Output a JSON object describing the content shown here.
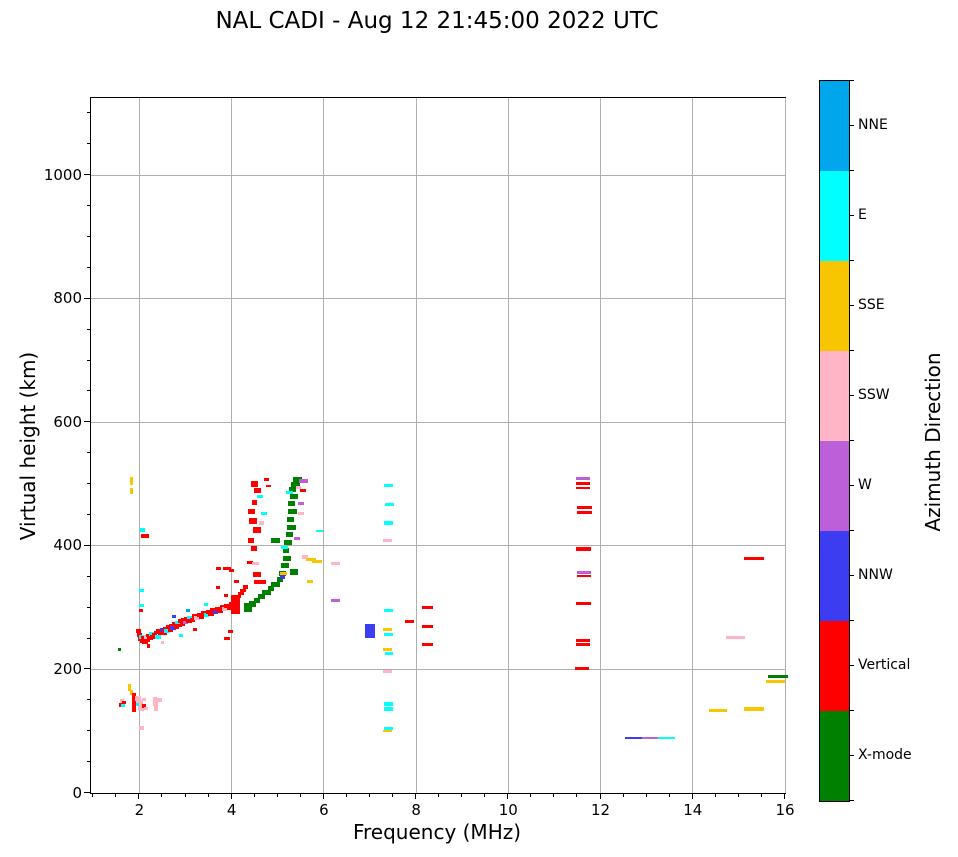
{
  "title": "NAL CADI - Aug 12 21:45:00 2022 UTC",
  "chart_data": {
    "type": "scatter",
    "title": "NAL CADI - Aug 12 21:45:00 2022 UTC",
    "xlabel": "Frequency (MHz)",
    "ylabel": "Virtual height (km)",
    "colorbar_label": "Azimuth Direction",
    "xlim": [
      0.95,
      16.0
    ],
    "ylim": [
      0,
      1125
    ],
    "xticks": [
      2,
      4,
      6,
      8,
      10,
      12,
      14,
      16
    ],
    "yticks": [
      0,
      200,
      400,
      600,
      800,
      1000
    ],
    "x_minor_step": 0.5,
    "y_minor_step": 50,
    "grid": true,
    "legend_position": "right-colorbar",
    "directions": [
      {
        "label": "NNE",
        "color": "#00a6ec"
      },
      {
        "label": "E",
        "color": "#00ffff"
      },
      {
        "label": "SSE",
        "color": "#f7c600"
      },
      {
        "label": "SSW",
        "color": "#ffb5c5"
      },
      {
        "label": "W",
        "color": "#bc5fd8"
      },
      {
        "label": "NNW",
        "color": "#3c3cf0"
      },
      {
        "label": "Vertical",
        "color": "#fe0000"
      },
      {
        "label": "X-mode",
        "color": "#008000"
      }
    ],
    "points_format": "[freq_MHz, height_km, direction_index, width_MHz(optional), height_km_size(optional)]",
    "points": [
      [
        1.57,
        232,
        7,
        0.08,
        5
      ],
      [
        1.62,
        148,
        3,
        0.1,
        7
      ],
      [
        1.6,
        143,
        6,
        0.09,
        6
      ],
      [
        1.64,
        141,
        1,
        0.09,
        5
      ],
      [
        1.67,
        146,
        6,
        0.08,
        5
      ],
      [
        1.78,
        171,
        2,
        0.07,
        11
      ],
      [
        1.83,
        163,
        2,
        0.07,
        9
      ],
      [
        1.88,
        158,
        6,
        0.09,
        7
      ],
      [
        1.89,
        150,
        6,
        0.09,
        8
      ],
      [
        1.88,
        142,
        6,
        0.09,
        8
      ],
      [
        1.88,
        134,
        6,
        0.09,
        7
      ],
      [
        1.97,
        153,
        3,
        0.12,
        7
      ],
      [
        2.0,
        146,
        3,
        0.14,
        9
      ],
      [
        2.03,
        137,
        3,
        0.12,
        8
      ],
      [
        1.96,
        143,
        1,
        0.08,
        5
      ],
      [
        2.1,
        141,
        6,
        0.08,
        6
      ],
      [
        2.14,
        137,
        3,
        0.1,
        6
      ],
      [
        2.1,
        152,
        3,
        0.08,
        5
      ],
      [
        2.33,
        153,
        3,
        0.09,
        6
      ],
      [
        2.35,
        146,
        3,
        0.12,
        9
      ],
      [
        2.36,
        137,
        3,
        0.1,
        7
      ],
      [
        2.44,
        150,
        3,
        0.1,
        6
      ],
      [
        2.05,
        105,
        3,
        0.1,
        7
      ],
      [
        1.82,
        505,
        2,
        0.07,
        12
      ],
      [
        1.83,
        489,
        2,
        0.07,
        9
      ],
      [
        2.07,
        426,
        1,
        0.1,
        6
      ],
      [
        2.12,
        416,
        6,
        0.16,
        8
      ],
      [
        2.05,
        328,
        1,
        0.1,
        5
      ],
      [
        2.05,
        304,
        1,
        0.1,
        5
      ],
      [
        2.04,
        296,
        6,
        0.09,
        5
      ],
      [
        1.98,
        262,
        6
      ],
      [
        2.0,
        256,
        6
      ],
      [
        2.02,
        249,
        6
      ],
      [
        2.05,
        253,
        1
      ],
      [
        2.07,
        246,
        6
      ],
      [
        2.1,
        251,
        6
      ],
      [
        2.12,
        244,
        6
      ],
      [
        2.15,
        252,
        3
      ],
      [
        2.17,
        247,
        6
      ],
      [
        2.2,
        255,
        6
      ],
      [
        2.23,
        250,
        6
      ],
      [
        2.27,
        257,
        1
      ],
      [
        2.3,
        252,
        6
      ],
      [
        2.33,
        256,
        6
      ],
      [
        2.37,
        260,
        6
      ],
      [
        2.4,
        253,
        1
      ],
      [
        2.43,
        262,
        6
      ],
      [
        2.47,
        258,
        6
      ],
      [
        2.5,
        264,
        5
      ],
      [
        2.53,
        259,
        6
      ],
      [
        2.57,
        266,
        6
      ],
      [
        2.6,
        262,
        1
      ],
      [
        2.63,
        269,
        6
      ],
      [
        2.67,
        264,
        6
      ],
      [
        2.7,
        271,
        6
      ],
      [
        2.73,
        267,
        5
      ],
      [
        2.77,
        273,
        6
      ],
      [
        2.8,
        269,
        6
      ],
      [
        2.83,
        276,
        1
      ],
      [
        2.87,
        271,
        6
      ],
      [
        2.9,
        278,
        6
      ],
      [
        2.93,
        274,
        6
      ],
      [
        2.97,
        280,
        6
      ],
      [
        3.0,
        276,
        4
      ],
      [
        3.03,
        282,
        6
      ],
      [
        3.07,
        278,
        6
      ],
      [
        3.1,
        284,
        1
      ],
      [
        3.15,
        280,
        6
      ],
      [
        3.2,
        286,
        6
      ],
      [
        3.25,
        283,
        3
      ],
      [
        3.3,
        288,
        6
      ],
      [
        3.35,
        285,
        6
      ],
      [
        3.4,
        291,
        6
      ],
      [
        3.45,
        288,
        1
      ],
      [
        3.5,
        293,
        6
      ],
      [
        3.55,
        290,
        6
      ],
      [
        3.6,
        296,
        6
      ],
      [
        3.65,
        293,
        5
      ],
      [
        3.7,
        298,
        6
      ],
      [
        3.75,
        295,
        6
      ],
      [
        3.8,
        301,
        6
      ],
      [
        3.85,
        298,
        3
      ],
      [
        3.9,
        303,
        6
      ],
      [
        3.95,
        300,
        6
      ],
      [
        4.0,
        306,
        6
      ],
      [
        4.05,
        310,
        6
      ],
      [
        4.1,
        314,
        6
      ],
      [
        4.15,
        318,
        6
      ],
      [
        4.2,
        323,
        6
      ],
      [
        4.25,
        328,
        6
      ],
      [
        4.3,
        333,
        6
      ],
      [
        2.2,
        238,
        6,
        0.08,
        5
      ],
      [
        2.5,
        243,
        3,
        0.08,
        5
      ],
      [
        2.9,
        255,
        1,
        0.08,
        5
      ],
      [
        3.2,
        265,
        6,
        0.08,
        5
      ],
      [
        2.75,
        285,
        5,
        0.08,
        5
      ],
      [
        3.05,
        295,
        0,
        0.08,
        5
      ],
      [
        3.45,
        305,
        1,
        0.08,
        5
      ],
      [
        3.7,
        333,
        6,
        0.1,
        5
      ],
      [
        3.9,
        364,
        6,
        0.16,
        5
      ],
      [
        3.72,
        364,
        6,
        0.1,
        5
      ],
      [
        4.1,
        343,
        6,
        0.1,
        5
      ],
      [
        3.88,
        319,
        6,
        0.1,
        5
      ],
      [
        4.0,
        360,
        6,
        0.1,
        4
      ],
      [
        3.9,
        250,
        6,
        0.12,
        5
      ],
      [
        3.97,
        261,
        6,
        0.1,
        5
      ],
      [
        4.08,
        305,
        6,
        0.2,
        30
      ],
      [
        4.5,
        500,
        6,
        0.16,
        9
      ],
      [
        4.56,
        489,
        6,
        0.14,
        8
      ],
      [
        4.5,
        470,
        6,
        0.12,
        8
      ],
      [
        4.43,
        456,
        6,
        0.14,
        8
      ],
      [
        4.46,
        440,
        6,
        0.18,
        10
      ],
      [
        4.55,
        426,
        6,
        0.18,
        10
      ],
      [
        4.42,
        408,
        6,
        0.12,
        8
      ],
      [
        4.48,
        396,
        6,
        0.14,
        8
      ],
      [
        4.4,
        373,
        6,
        0.12,
        6
      ],
      [
        4.55,
        353,
        6,
        0.18,
        8
      ],
      [
        4.62,
        341,
        6,
        0.26,
        6
      ],
      [
        4.62,
        480,
        1,
        0.12,
        5
      ],
      [
        4.7,
        453,
        1,
        0.14,
        5
      ],
      [
        4.65,
        437,
        3,
        0.12,
        5
      ],
      [
        4.52,
        372,
        3,
        0.14,
        5
      ],
      [
        4.75,
        508,
        6,
        0.1,
        5
      ],
      [
        4.8,
        497,
        6,
        0.1,
        4
      ],
      [
        4.35,
        300,
        7,
        0.18,
        14
      ],
      [
        4.45,
        306,
        7,
        0.14,
        10
      ],
      [
        4.55,
        312,
        7,
        0.14,
        8
      ],
      [
        4.65,
        318,
        7,
        0.14,
        8
      ],
      [
        4.75,
        325,
        7,
        0.2,
        8
      ],
      [
        4.85,
        331,
        7,
        0.14,
        8
      ],
      [
        4.95,
        338,
        7,
        0.18,
        8
      ],
      [
        5.05,
        345,
        7,
        0.14,
        8
      ],
      [
        5.1,
        355,
        7,
        0.16,
        8
      ],
      [
        5.15,
        368,
        7,
        0.18,
        8
      ],
      [
        5.2,
        380,
        7,
        0.16,
        8
      ],
      [
        5.18,
        392,
        7,
        0.14,
        8
      ],
      [
        5.22,
        405,
        7,
        0.18,
        8
      ],
      [
        5.25,
        418,
        7,
        0.16,
        8
      ],
      [
        5.3,
        430,
        7,
        0.18,
        8
      ],
      [
        5.28,
        442,
        7,
        0.16,
        8
      ],
      [
        5.32,
        455,
        7,
        0.18,
        8
      ],
      [
        5.3,
        468,
        7,
        0.16,
        8
      ],
      [
        5.35,
        480,
        7,
        0.18,
        8
      ],
      [
        5.32,
        492,
        7,
        0.16,
        8
      ],
      [
        5.38,
        500,
        7,
        0.2,
        8
      ],
      [
        5.43,
        508,
        7,
        0.18,
        8
      ],
      [
        5.35,
        358,
        7,
        0.16,
        10
      ],
      [
        4.95,
        408,
        7,
        0.2,
        8
      ],
      [
        5.1,
        350,
        5,
        0.12,
        7
      ],
      [
        5.15,
        398,
        1,
        0.14,
        5
      ],
      [
        5.12,
        356,
        2,
        0.14,
        5
      ],
      [
        5.25,
        486,
        1,
        0.16,
        5
      ],
      [
        5.42,
        412,
        4,
        0.13,
        5
      ],
      [
        5.55,
        505,
        4,
        0.2,
        5
      ],
      [
        5.5,
        468,
        4,
        0.14,
        5
      ],
      [
        5.6,
        382,
        3,
        0.13,
        5
      ],
      [
        5.45,
        495,
        3,
        0.13,
        5
      ],
      [
        5.5,
        452,
        3,
        0.12,
        5
      ],
      [
        5.7,
        343,
        2,
        0.14,
        5
      ],
      [
        5.55,
        490,
        6,
        0.12,
        5
      ],
      [
        5.72,
        378,
        2,
        0.2,
        5
      ],
      [
        5.85,
        375,
        2,
        0.2,
        5
      ],
      [
        5.9,
        424,
        1,
        0.15,
        4
      ],
      [
        6.25,
        372,
        3,
        0.18,
        5
      ],
      [
        6.25,
        312,
        4,
        0.18,
        5
      ],
      [
        7.0,
        262,
        5,
        0.22,
        22
      ],
      [
        7.4,
        497,
        1,
        0.2,
        5
      ],
      [
        7.42,
        467,
        1,
        0.2,
        5
      ],
      [
        7.4,
        437,
        1,
        0.18,
        5
      ],
      [
        7.38,
        408,
        3,
        0.18,
        5
      ],
      [
        7.4,
        295,
        1,
        0.2,
        5
      ],
      [
        7.38,
        265,
        2,
        0.18,
        5
      ],
      [
        7.4,
        256,
        1,
        0.2,
        5
      ],
      [
        7.38,
        233,
        2,
        0.18,
        5
      ],
      [
        7.41,
        226,
        1,
        0.18,
        4
      ],
      [
        7.38,
        197,
        3,
        0.18,
        5
      ],
      [
        7.4,
        144,
        1,
        0.2,
        5
      ],
      [
        7.4,
        136,
        1,
        0.2,
        5
      ],
      [
        7.4,
        105,
        1,
        0.18,
        5
      ],
      [
        7.38,
        100,
        2,
        0.18,
        4
      ],
      [
        7.85,
        278,
        6,
        0.2,
        5
      ],
      [
        8.25,
        301,
        6,
        0.24,
        5
      ],
      [
        8.25,
        270,
        6,
        0.24,
        5
      ],
      [
        8.25,
        241,
        6,
        0.24,
        5
      ],
      [
        11.62,
        509,
        4,
        0.3,
        4
      ],
      [
        11.62,
        501,
        6,
        0.3,
        4
      ],
      [
        11.62,
        494,
        6,
        0.3,
        4
      ],
      [
        11.65,
        462,
        6,
        0.32,
        5
      ],
      [
        11.65,
        454,
        6,
        0.32,
        4
      ],
      [
        11.63,
        395,
        6,
        0.32,
        5
      ],
      [
        11.65,
        357,
        4,
        0.3,
        4
      ],
      [
        11.65,
        351,
        6,
        0.3,
        3
      ],
      [
        11.63,
        306,
        6,
        0.32,
        5
      ],
      [
        11.62,
        247,
        6,
        0.32,
        4
      ],
      [
        11.62,
        240,
        6,
        0.32,
        4
      ],
      [
        11.6,
        202,
        6,
        0.3,
        5
      ],
      [
        12.72,
        89,
        5,
        0.37,
        4
      ],
      [
        13.08,
        89,
        4,
        0.37,
        4
      ],
      [
        13.43,
        89,
        1,
        0.37,
        4
      ],
      [
        14.55,
        133,
        2,
        0.4,
        5
      ],
      [
        15.33,
        136,
        2,
        0.42,
        5
      ],
      [
        14.93,
        251,
        3,
        0.4,
        5
      ],
      [
        15.33,
        379,
        6,
        0.42,
        5
      ],
      [
        15.85,
        188,
        7,
        0.45,
        5
      ],
      [
        15.8,
        180,
        2,
        0.42,
        5
      ]
    ]
  }
}
